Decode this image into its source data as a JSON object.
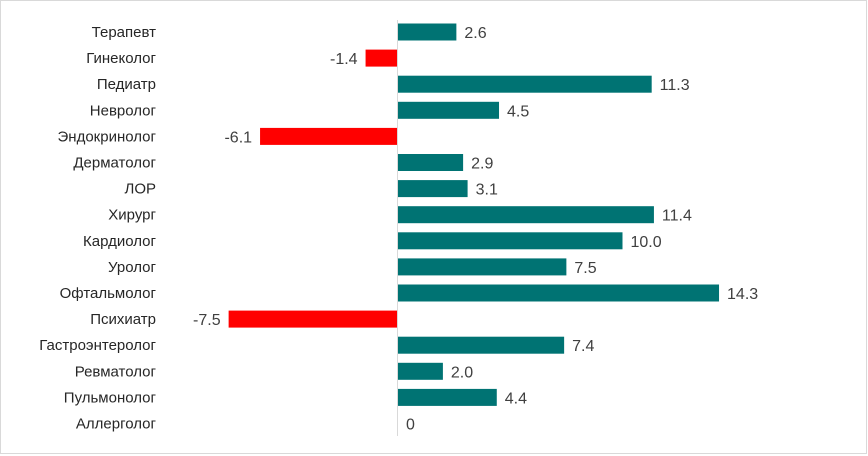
{
  "chart_data": {
    "type": "bar",
    "orientation": "horizontal",
    "categories": [
      "Терапевт",
      "Гинеколог",
      "Педиатр",
      "Невролог",
      "Эндокринолог",
      "Дерматолог",
      "ЛОР",
      "Хирург",
      "Кардиолог",
      "Уролог",
      "Офтальмолог",
      "Психиатр",
      "Гастроэнтеролог",
      "Ревматолог",
      "Пульмонолог",
      "Аллерголог"
    ],
    "values": [
      2.6,
      -1.4,
      11.3,
      4.5,
      -6.1,
      2.9,
      3.1,
      11.4,
      10.0,
      7.5,
      14.3,
      -7.5,
      7.4,
      2.0,
      4.4,
      0
    ],
    "value_labels": [
      "2.6",
      "-1.4",
      "11.3",
      "4.5",
      "-6.1",
      "2.9",
      "3.1",
      "11.4",
      "10.0",
      "7.5",
      "14.3",
      "-7.5",
      "7.4",
      "2.0",
      "4.4",
      "0"
    ],
    "xlim": [
      -7.5,
      15.0
    ],
    "grid": false,
    "legend": "none",
    "colors": {
      "positive": "#007373",
      "negative": "#ff0000"
    }
  }
}
